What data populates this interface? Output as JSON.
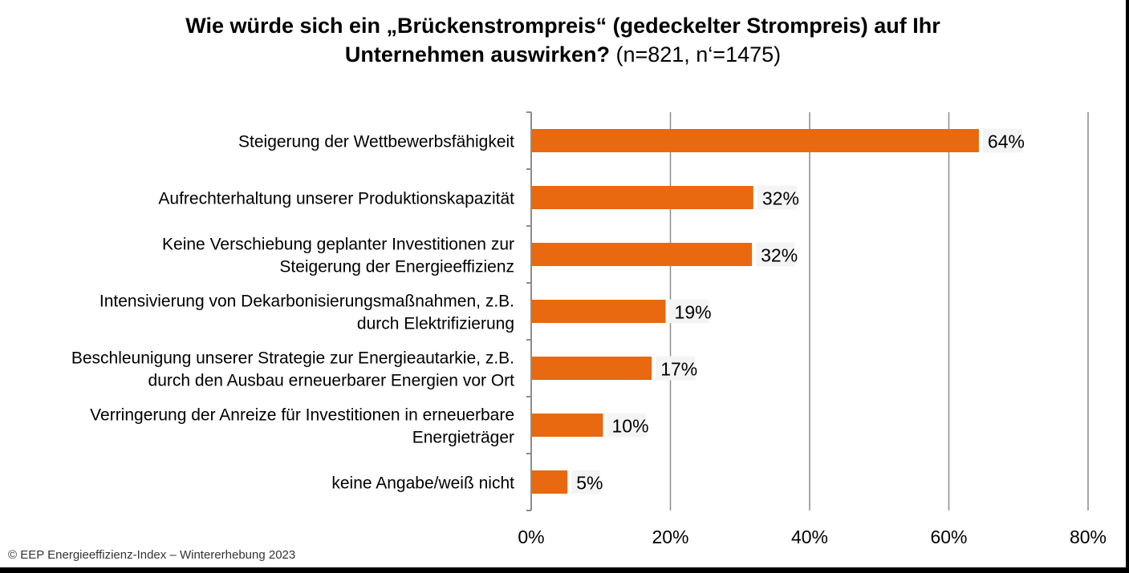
{
  "title": {
    "line1": "Wie würde sich ein „Brückenstrompreis“ (gedeckelter Strompreis) auf Ihr",
    "line2_bold": "Unternehmen auswirken?",
    "line2_light": " (n=821, n‘=1475)"
  },
  "footer": "© EEP Energieeffizienz-Index – Wintererhebung 2023",
  "colors": {
    "bar": "#E8690F",
    "grid": "#8C8C8C",
    "axis": "#8C8C8C",
    "text": "#000000"
  },
  "chart_data": {
    "type": "bar",
    "orientation": "horizontal",
    "categories": [
      [
        "Steigerung der Wettbewerbsfähigkeit"
      ],
      [
        "Aufrechterhaltung unserer Produktionskapazität"
      ],
      [
        "Keine Verschiebung geplanter Investitionen zur",
        "Steigerung der Energieeffizienz"
      ],
      [
        "Intensivierung von Dekarbonisierungsmaßnahmen, z.B.",
        "durch Elektrifizierung"
      ],
      [
        "Beschleunigung unserer Strategie zur Energieautarkie, z.B.",
        "durch den Ausbau erneuerbarer Energien vor Ort"
      ],
      [
        "Verringerung der Anreize für Investitionen in erneuerbare",
        "Energieträger"
      ],
      [
        "keine Angabe/weiß nicht"
      ]
    ],
    "values": [
      64.2,
      31.8,
      31.6,
      19.2,
      17.2,
      10.2,
      5.1
    ],
    "value_labels": [
      "64%",
      "32%",
      "32%",
      "19%",
      "17%",
      "10%",
      "5%"
    ],
    "xlim": [
      0,
      80
    ],
    "xticks": [
      0,
      20,
      40,
      60,
      80
    ],
    "xtick_labels": [
      "0%",
      "20%",
      "40%",
      "60%",
      "80%"
    ],
    "grid": true
  }
}
